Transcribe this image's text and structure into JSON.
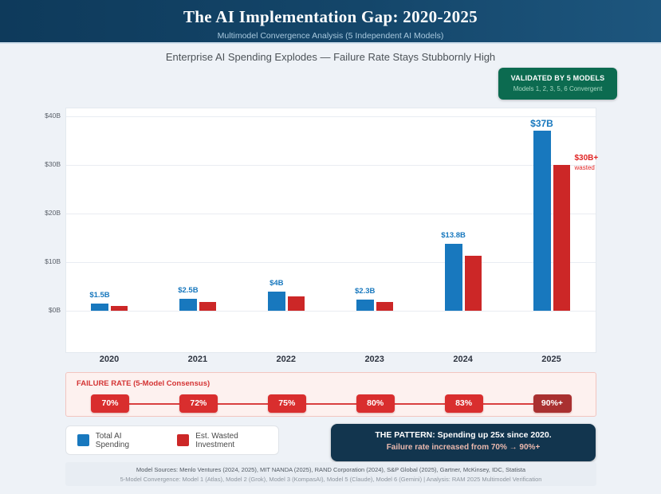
{
  "header": {
    "title": "The AI Implementation Gap: 2020-2025",
    "subtitle": "Multimodel Convergence Analysis (5 Independent AI Models)"
  },
  "heading": "Enterprise AI Spending Explodes — Failure Rate Stays Stubbornly High",
  "badge": {
    "line1": "VALIDATED BY 5 MODELS",
    "line2": "Models 1, 2, 3, 5, 6 Convergent",
    "color": "#0c6b50"
  },
  "chart_data": {
    "type": "bar",
    "categories": [
      "2020",
      "2021",
      "2022",
      "2023",
      "2024",
      "2025"
    ],
    "series": [
      {
        "name": "Total AI Spending",
        "color": "#1878be",
        "values": [
          1.5,
          2.5,
          4,
          2.3,
          13.8,
          37
        ],
        "labels": [
          "$1.5B",
          "$2.5B",
          "$4B",
          "$2.3B",
          "$13.8B",
          "$37B"
        ]
      },
      {
        "name": "Est. Wasted Investment",
        "color": "#cc2727",
        "values": [
          1.0,
          1.8,
          3.0,
          1.8,
          11.3,
          30
        ]
      }
    ],
    "ylabel": "",
    "xlabel": "",
    "ylim": [
      0,
      40
    ],
    "ytick_values": [
      0,
      10,
      20,
      30,
      40
    ],
    "ytick_labels": [
      "$0B",
      "$10B",
      "$20B",
      "$30B",
      "$40B"
    ],
    "grid": true,
    "legend_position": "bottom-left",
    "annotation": {
      "label": "$30B+",
      "sub": "wasted",
      "color": "#e02424"
    },
    "failure_rate": {
      "title": "FAILURE RATE (5-Model Consensus)",
      "values": [
        "70%",
        "72%",
        "75%",
        "80%",
        "83%",
        "90%+"
      ],
      "box_color": "#d92e2e",
      "last_box_color": "#a93030"
    }
  },
  "legend": [
    {
      "label": "Total AI Spending",
      "color": "#1878be"
    },
    {
      "label": "Est. Wasted Investment",
      "color": "#cc2727"
    }
  ],
  "pattern": {
    "line1": "THE PATTERN: Spending up 25x since 2020.",
    "line2": "Failure rate increased from 70% → 90%+"
  },
  "footer": {
    "line1": "Model Sources: Menlo Ventures (2024, 2025), MIT NANDA (2025), RAND Corporation (2024), S&P Global (2025), Gartner, McKinsey, IDC, Statista",
    "line2": "5-Model Convergence: Model 1 (Atlas), Model 2 (Grok), Model 3 (KompasAI), Model 5 (Claude), Model 6 (Gemini) | Analysis: RAM 2025 Multimodel Verification"
  }
}
